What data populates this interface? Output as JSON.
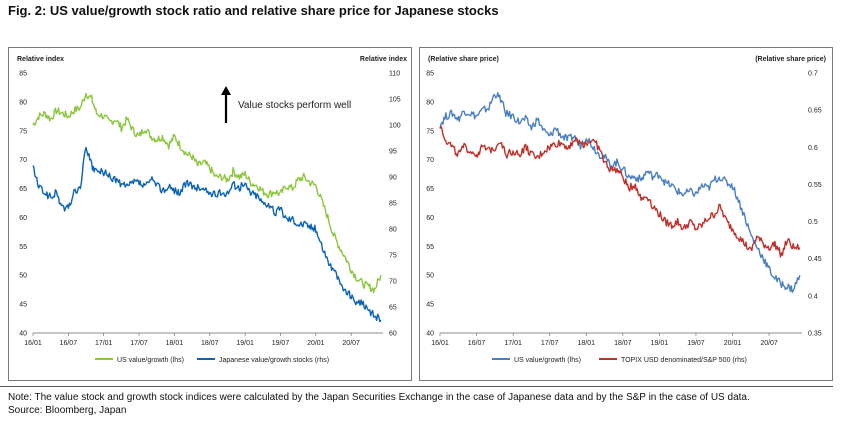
{
  "figure": {
    "title": "Fig. 2: US value/growth stock ratio and relative share price for Japanese stocks",
    "note": "Note: The value stock and growth stock indices were calculated by the Japan Securities Exchange in the case of Japanese data and by the S&P in the case of US data.",
    "source": "Source: Bloomberg, Japan"
  },
  "chart_data": [
    {
      "type": "line",
      "left_axis_label": "Relative index",
      "right_axis_label": "Relative index",
      "annotation": "Value stocks perform well",
      "x_ticks": [
        "16/01",
        "16/07",
        "17/01",
        "17/07",
        "18/01",
        "18/07",
        "19/01",
        "19/07",
        "20/01",
        "20/07"
      ],
      "x_range": [
        2016.0,
        2020.95
      ],
      "ylim_left": [
        40,
        85
      ],
      "ylim_right": [
        60,
        110
      ],
      "y_ticks_left": [
        "40",
        "45",
        "50",
        "55",
        "60",
        "65",
        "70",
        "75",
        "80",
        "85"
      ],
      "y_ticks_right": [
        "60",
        "65",
        "70",
        "75",
        "80",
        "85",
        "90",
        "95",
        "100",
        "105",
        "110"
      ],
      "grid": false,
      "legend_position": "bottom",
      "series": [
        {
          "name": "US value/growth (lhs)",
          "color": "#8cc63f",
          "axis": "left",
          "x": [
            2016.0,
            2016.08,
            2016.17,
            2016.25,
            2016.33,
            2016.42,
            2016.5,
            2016.58,
            2016.67,
            2016.75,
            2016.83,
            2016.9,
            2017.0,
            2017.08,
            2017.17,
            2017.25,
            2017.33,
            2017.42,
            2017.5,
            2017.58,
            2017.67,
            2017.75,
            2017.83,
            2017.92,
            2018.0,
            2018.08,
            2018.17,
            2018.25,
            2018.33,
            2018.42,
            2018.5,
            2018.58,
            2018.67,
            2018.75,
            2018.83,
            2018.92,
            2019.0,
            2019.08,
            2019.17,
            2019.25,
            2019.33,
            2019.42,
            2019.5,
            2019.58,
            2019.67,
            2019.75,
            2019.83,
            2019.92,
            2020.0,
            2020.08,
            2020.17,
            2020.25,
            2020.33,
            2020.42,
            2020.5,
            2020.58,
            2020.67,
            2020.75,
            2020.83,
            2020.92
          ],
          "y": [
            76,
            77.5,
            78,
            77,
            78.5,
            78,
            77.5,
            78.5,
            79,
            81.5,
            80.5,
            78,
            77.5,
            76.5,
            77,
            75.5,
            77,
            75,
            74,
            75.5,
            74,
            73.5,
            74,
            72.5,
            74,
            72.5,
            71,
            70.5,
            69,
            69.5,
            68.5,
            67,
            67,
            66.5,
            68,
            67,
            67.5,
            66,
            65.5,
            64.5,
            64,
            64.5,
            64,
            65.5,
            65,
            66.5,
            67,
            66,
            65.5,
            63,
            60,
            57,
            55,
            53,
            51,
            49.5,
            48.5,
            48,
            47.5,
            50
          ]
        },
        {
          "name": "Japanese value/growth stocks (rhs)",
          "color": "#0b63b4",
          "axis": "right",
          "x": [
            2016.0,
            2016.08,
            2016.17,
            2016.25,
            2016.33,
            2016.42,
            2016.5,
            2016.58,
            2016.67,
            2016.75,
            2016.83,
            2016.9,
            2017.0,
            2017.08,
            2017.17,
            2017.25,
            2017.33,
            2017.42,
            2017.5,
            2017.58,
            2017.67,
            2017.75,
            2017.83,
            2017.92,
            2018.0,
            2018.08,
            2018.17,
            2018.25,
            2018.33,
            2018.42,
            2018.5,
            2018.58,
            2018.67,
            2018.75,
            2018.83,
            2018.92,
            2019.0,
            2019.08,
            2019.17,
            2019.25,
            2019.33,
            2019.42,
            2019.5,
            2019.58,
            2019.67,
            2019.75,
            2019.83,
            2019.92,
            2020.0,
            2020.08,
            2020.17,
            2020.25,
            2020.33,
            2020.42,
            2020.5,
            2020.58,
            2020.67,
            2020.75,
            2020.83,
            2020.92
          ],
          "y": [
            92,
            88,
            87,
            86,
            87,
            84,
            84,
            87,
            88,
            96,
            92,
            91,
            91,
            90,
            89.5,
            88.5,
            88,
            89,
            89,
            88,
            89.5,
            88.5,
            87.5,
            88,
            87.5,
            87,
            89,
            88,
            88,
            87.5,
            87,
            86.5,
            87,
            87,
            88.5,
            88,
            88.5,
            87,
            86.5,
            85,
            85,
            83,
            84,
            82,
            82,
            81,
            81,
            80.5,
            80,
            77,
            74,
            72,
            70,
            68,
            67,
            66,
            65.5,
            64,
            63.5,
            62.5
          ]
        }
      ]
    },
    {
      "type": "line",
      "left_axis_label": "(Relative share price)",
      "right_axis_label": "(Relative share price)",
      "x_ticks": [
        "16/01",
        "16/07",
        "17/01",
        "17/07",
        "18/01",
        "18/07",
        "19/01",
        "19/07",
        "20/01",
        "20/07"
      ],
      "x_range": [
        2016.0,
        2020.95
      ],
      "ylim_left": [
        40,
        85
      ],
      "ylim_right": [
        0.35,
        0.7
      ],
      "y_ticks_left": [
        "40",
        "45",
        "50",
        "55",
        "60",
        "65",
        "70",
        "75",
        "80",
        "85"
      ],
      "y_ticks_right": [
        "0.35",
        "0.4",
        "0.45",
        "0.5",
        "0.55",
        "0.6",
        "0.65",
        "0.7"
      ],
      "grid": false,
      "legend_position": "bottom",
      "series": [
        {
          "name": "US value/growth (lhs)",
          "color": "#4a7fc1",
          "axis": "left",
          "x": [
            2016.0,
            2016.08,
            2016.17,
            2016.25,
            2016.33,
            2016.42,
            2016.5,
            2016.58,
            2016.67,
            2016.75,
            2016.83,
            2016.9,
            2017.0,
            2017.08,
            2017.17,
            2017.25,
            2017.33,
            2017.42,
            2017.5,
            2017.58,
            2017.67,
            2017.75,
            2017.83,
            2017.92,
            2018.0,
            2018.08,
            2018.17,
            2018.25,
            2018.33,
            2018.42,
            2018.5,
            2018.58,
            2018.67,
            2018.75,
            2018.83,
            2018.92,
            2019.0,
            2019.08,
            2019.17,
            2019.25,
            2019.33,
            2019.42,
            2019.5,
            2019.58,
            2019.67,
            2019.75,
            2019.83,
            2019.92,
            2020.0,
            2020.08,
            2020.17,
            2020.25,
            2020.33,
            2020.42,
            2020.5,
            2020.58,
            2020.67,
            2020.75,
            2020.83,
            2020.92
          ],
          "y": [
            76,
            77.5,
            78,
            77,
            78.5,
            78,
            77.5,
            78.5,
            79,
            81.5,
            80.5,
            78,
            77.5,
            76.5,
            77,
            75.5,
            77,
            75,
            74,
            75.5,
            74,
            73.5,
            74,
            72.5,
            74,
            72.5,
            71,
            70.5,
            69,
            69.5,
            68.5,
            67,
            67,
            66.5,
            68,
            67,
            67.5,
            66,
            65.5,
            64.5,
            64,
            64.5,
            64,
            65.5,
            65,
            66.5,
            67,
            66,
            65.5,
            63,
            60,
            57,
            55,
            53,
            51,
            49.5,
            48.5,
            48,
            47.5,
            50
          ]
        },
        {
          "name": "TOPIX USD denominated/S&P 500 (rhs)",
          "color": "#c0302a",
          "axis": "right",
          "x": [
            2016.0,
            2016.08,
            2016.17,
            2016.25,
            2016.33,
            2016.42,
            2016.5,
            2016.58,
            2016.67,
            2016.75,
            2016.83,
            2016.9,
            2017.0,
            2017.08,
            2017.17,
            2017.25,
            2017.33,
            2017.42,
            2017.5,
            2017.58,
            2017.67,
            2017.75,
            2017.83,
            2017.92,
            2018.0,
            2018.08,
            2018.17,
            2018.25,
            2018.33,
            2018.42,
            2018.5,
            2018.58,
            2018.67,
            2018.75,
            2018.83,
            2018.92,
            2019.0,
            2019.08,
            2019.17,
            2019.25,
            2019.33,
            2019.42,
            2019.5,
            2019.58,
            2019.67,
            2019.75,
            2019.83,
            2019.92,
            2020.0,
            2020.08,
            2020.17,
            2020.25,
            2020.33,
            2020.42,
            2020.5,
            2020.58,
            2020.67,
            2020.75,
            2020.83,
            2020.92
          ],
          "y": [
            0.63,
            0.61,
            0.6,
            0.59,
            0.6,
            0.595,
            0.59,
            0.6,
            0.595,
            0.6,
            0.61,
            0.59,
            0.595,
            0.59,
            0.6,
            0.59,
            0.585,
            0.595,
            0.6,
            0.605,
            0.605,
            0.6,
            0.61,
            0.605,
            0.605,
            0.61,
            0.6,
            0.58,
            0.57,
            0.57,
            0.56,
            0.545,
            0.55,
            0.53,
            0.535,
            0.52,
            0.51,
            0.5,
            0.495,
            0.5,
            0.49,
            0.5,
            0.49,
            0.495,
            0.505,
            0.51,
            0.52,
            0.5,
            0.49,
            0.48,
            0.47,
            0.46,
            0.48,
            0.47,
            0.465,
            0.47,
            0.455,
            0.475,
            0.465,
            0.465
          ]
        }
      ]
    }
  ]
}
